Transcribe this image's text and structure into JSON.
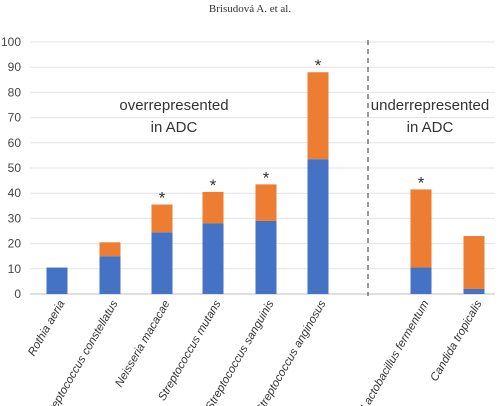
{
  "header": {
    "running_title": "Brisudová A. et al."
  },
  "chart_data": {
    "type": "bar",
    "stacked": true,
    "title": "",
    "xlabel": "",
    "ylabel": "",
    "ylim": [
      0,
      100
    ],
    "yticks": [
      0,
      10,
      20,
      30,
      40,
      50,
      60,
      70,
      80,
      90,
      100
    ],
    "grid": true,
    "categories": [
      "Rothia aeria",
      "Streptococcus constellatus",
      "Neisseria macacae",
      "Streptococcus mutans",
      "Streptococcus sanguinis",
      "Streptococcus anginosus",
      "Lactobacillus fermentum",
      "Candida tropicalis"
    ],
    "series": [
      {
        "color": "#4472C4",
        "values": [
          10.5,
          15,
          24.5,
          28,
          29,
          53.5,
          10.5,
          2
        ]
      },
      {
        "color": "#ED7D31",
        "values": [
          0,
          5.5,
          11,
          12.5,
          14.5,
          34.5,
          31,
          21
        ]
      }
    ],
    "significant": [
      false,
      false,
      true,
      true,
      true,
      true,
      true,
      false
    ],
    "significance_marker": "*",
    "annotations": [
      {
        "text": [
          "overrepresented",
          "in ADC"
        ],
        "group": "left"
      },
      {
        "text": [
          "underrepresented",
          "in ADC"
        ],
        "group": "right"
      }
    ],
    "divider": {
      "between": [
        "Streptococcus anginosus",
        "Lactobacillus fermentum"
      ],
      "style": "dashed"
    }
  }
}
